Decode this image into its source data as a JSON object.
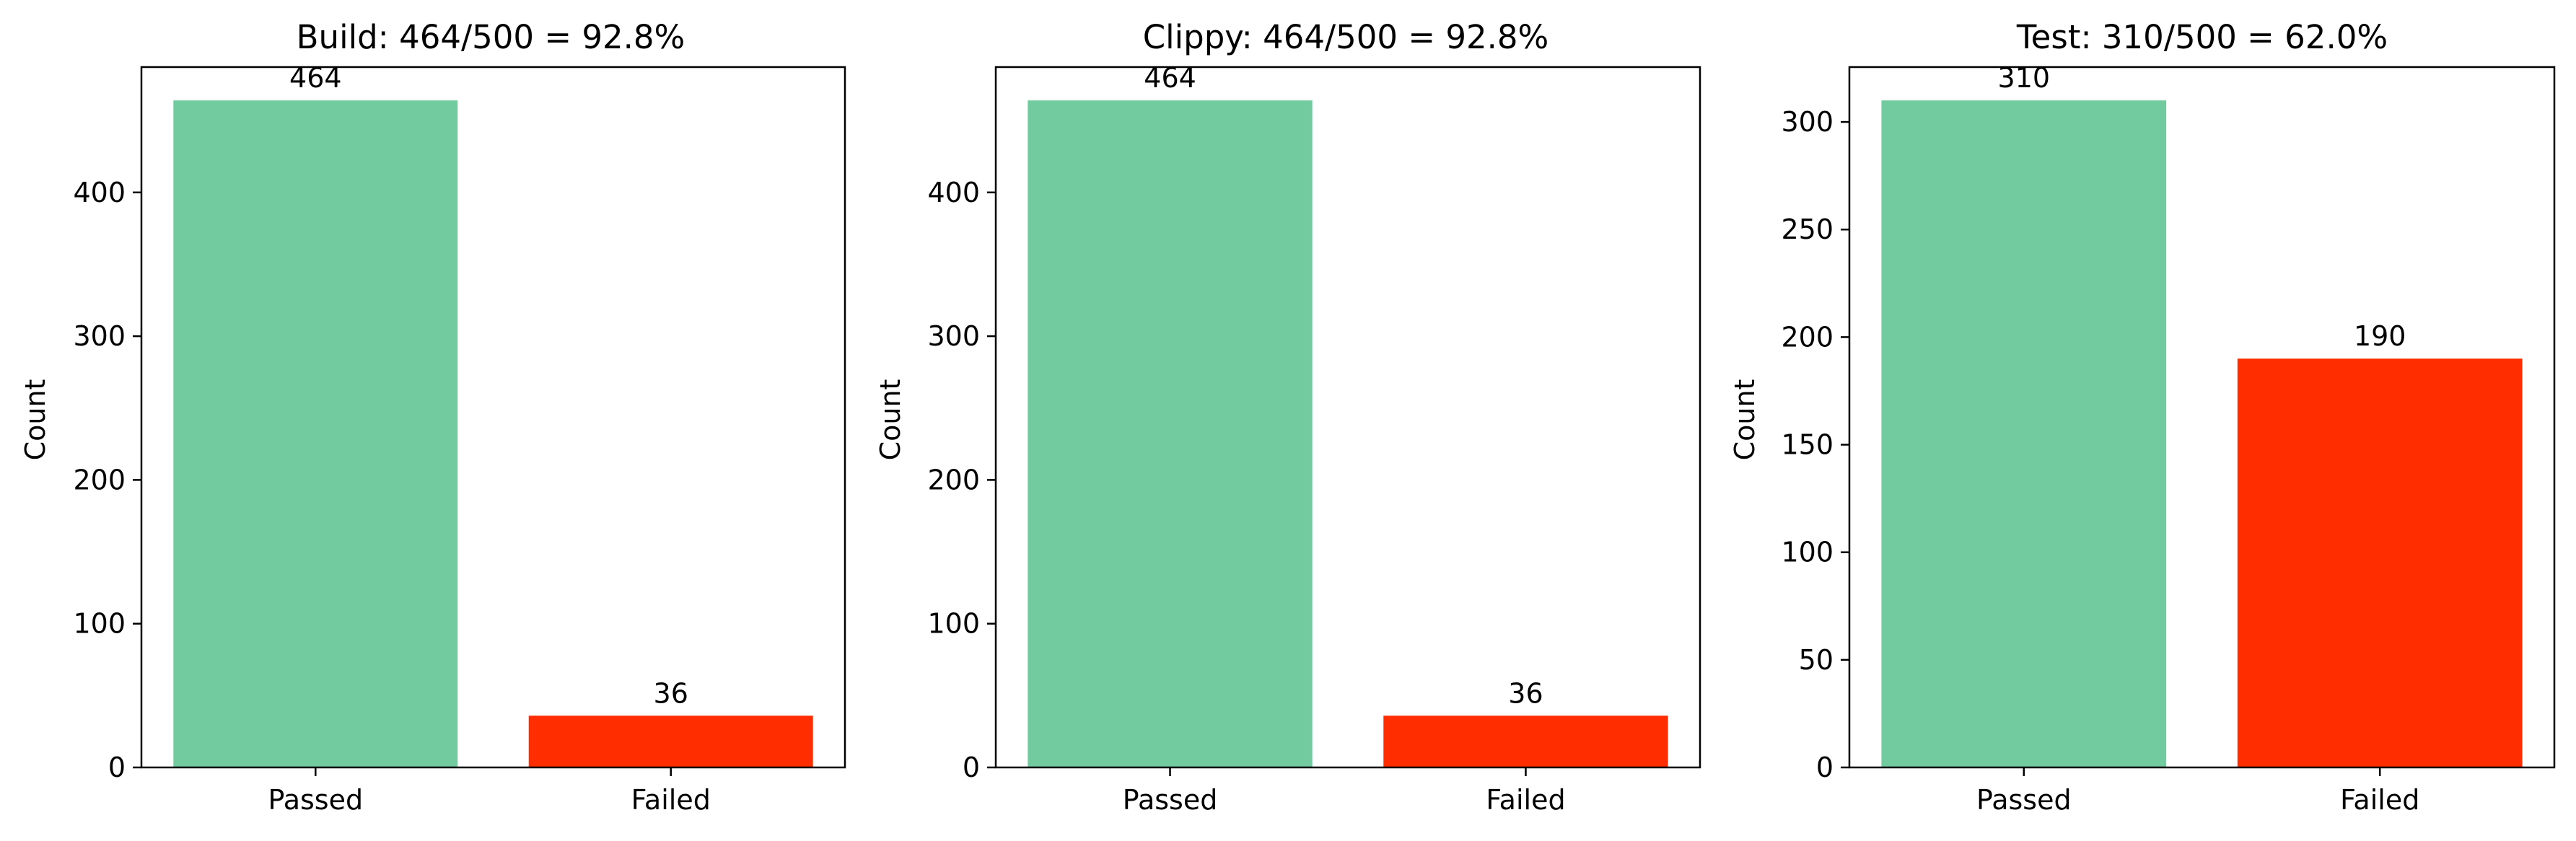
{
  "chart_data": [
    {
      "type": "bar",
      "title": "Build: 464/500 = 92.8%",
      "xlabel": "",
      "ylabel": "Count",
      "categories": [
        "Passed",
        "Failed"
      ],
      "values": [
        464,
        36
      ],
      "data_labels": [
        "464",
        "36"
      ],
      "colors": [
        "#71cb9f",
        "#ff2d00"
      ],
      "ylim": [
        0,
        487.2
      ],
      "yticks": [
        0,
        100,
        200,
        300,
        400
      ],
      "grid": false,
      "legend": "none"
    },
    {
      "type": "bar",
      "title": "Clippy: 464/500 = 92.8%",
      "xlabel": "",
      "ylabel": "Count",
      "categories": [
        "Passed",
        "Failed"
      ],
      "values": [
        464,
        36
      ],
      "data_labels": [
        "464",
        "36"
      ],
      "colors": [
        "#71cb9f",
        "#ff2d00"
      ],
      "ylim": [
        0,
        487.2
      ],
      "yticks": [
        0,
        100,
        200,
        300,
        400
      ],
      "grid": false,
      "legend": "none"
    },
    {
      "type": "bar",
      "title": "Test: 310/500 = 62.0%",
      "xlabel": "",
      "ylabel": "Count",
      "categories": [
        "Passed",
        "Failed"
      ],
      "values": [
        310,
        190
      ],
      "data_labels": [
        "310",
        "190"
      ],
      "colors": [
        "#71cb9f",
        "#ff2d00"
      ],
      "ylim": [
        0,
        325.5
      ],
      "yticks": [
        0,
        50,
        100,
        150,
        200,
        250,
        300
      ],
      "grid": false,
      "legend": "none"
    }
  ]
}
